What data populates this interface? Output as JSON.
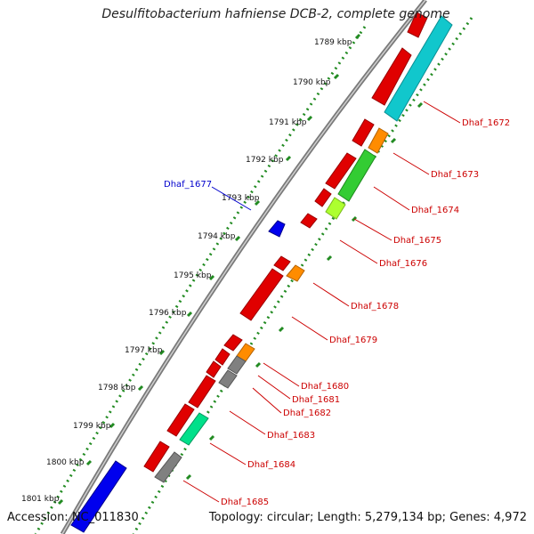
{
  "header": {
    "title": "Desulfitobacterium hafniense DCB-2, complete genome"
  },
  "footer": {
    "accession": "Accession: NC_011830",
    "topology": "Topology: circular; Length: 5,279,134 bp; Genes: 4,972"
  },
  "colors": {
    "backbone": "#808080",
    "scale_dots": "#228b22",
    "label_red": "#cc0000",
    "label_blue": "#0000cc"
  },
  "scale_labels": [
    "1789 kbp",
    "1790 kbp",
    "1791 kbp",
    "1792 kbp",
    "1793 kbp",
    "1794 kbp",
    "1795 kbp",
    "1796 kbp",
    "1797 kbp",
    "1798 kbp",
    "1799 kbp",
    "1800 kbp",
    "1801 kbp"
  ],
  "gene_labels": [
    {
      "id": "Dhaf_1672",
      "text": "Dhaf_1672",
      "color": "red"
    },
    {
      "id": "Dhaf_1673",
      "text": "Dhaf_1673",
      "color": "red"
    },
    {
      "id": "Dhaf_1674",
      "text": "Dhaf_1674",
      "color": "red"
    },
    {
      "id": "Dhaf_1675",
      "text": "Dhaf_1675",
      "color": "red"
    },
    {
      "id": "Dhaf_1676",
      "text": "Dhaf_1676",
      "color": "red"
    },
    {
      "id": "Dhaf_1677",
      "text": "Dhaf_1677",
      "color": "blue"
    },
    {
      "id": "Dhaf_1678",
      "text": "Dhaf_1678",
      "color": "red"
    },
    {
      "id": "Dhaf_1679",
      "text": "Dhaf_1679",
      "color": "red"
    },
    {
      "id": "Dhaf_1680",
      "text": "Dhaf_1680",
      "color": "red"
    },
    {
      "id": "Dhaf_1681",
      "text": "Dhaf_1681",
      "color": "red"
    },
    {
      "id": "Dhaf_1682",
      "text": "Dhaf_1682",
      "color": "red"
    },
    {
      "id": "Dhaf_1683",
      "text": "Dhaf_1683",
      "color": "red"
    },
    {
      "id": "Dhaf_1684",
      "text": "Dhaf_1684",
      "color": "red"
    },
    {
      "id": "Dhaf_1685",
      "text": "Dhaf_1685",
      "color": "red"
    }
  ]
}
